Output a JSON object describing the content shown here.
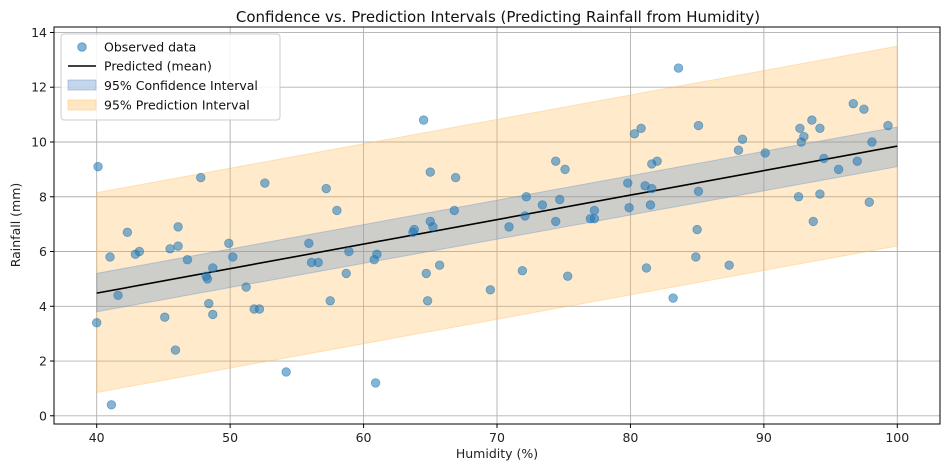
{
  "chart_data": {
    "type": "scatter",
    "title": "Confidence vs. Prediction Intervals (Predicting Rainfall from Humidity)",
    "xlabel": "Humidity (%)",
    "ylabel": "Rainfall (mm)",
    "xlim": [
      36.8,
      103.2
    ],
    "ylim": [
      -0.3,
      14.2
    ],
    "x_ticks": [
      40,
      50,
      60,
      70,
      80,
      90,
      100
    ],
    "y_ticks": [
      0,
      2,
      4,
      6,
      8,
      10,
      12,
      14
    ],
    "grid": true,
    "legend_position": "top-left",
    "colors": {
      "scatter": "#1f77b4",
      "line": "#000000",
      "confidence": "#5b8cc7",
      "prediction": "#ffbb55"
    },
    "legend": [
      {
        "label": "Observed data",
        "kind": "marker"
      },
      {
        "label": "Predicted (mean)",
        "kind": "line"
      },
      {
        "label": "95% Confidence Interval",
        "kind": "confidence"
      },
      {
        "label": "95% Prediction Interval",
        "kind": "prediction"
      }
    ],
    "mean_line": {
      "x": [
        40,
        100
      ],
      "y": [
        4.48,
        9.85
      ]
    },
    "confidence_interval": {
      "x": [
        40,
        100
      ],
      "lower": [
        3.8,
        9.1
      ],
      "upper": [
        5.2,
        10.55
      ]
    },
    "prediction_interval": {
      "x": [
        40,
        100
      ],
      "lower": [
        0.85,
        6.2
      ],
      "upper": [
        8.15,
        13.5
      ]
    },
    "series": [
      {
        "name": "Observed data",
        "points": [
          [
            40.0,
            3.4
          ],
          [
            40.1,
            9.1
          ],
          [
            41.0,
            5.8
          ],
          [
            41.1,
            0.4
          ],
          [
            41.6,
            4.4
          ],
          [
            42.3,
            6.7
          ],
          [
            42.9,
            5.9
          ],
          [
            43.2,
            6.0
          ],
          [
            45.1,
            3.6
          ],
          [
            45.5,
            6.1
          ],
          [
            45.9,
            2.4
          ],
          [
            46.1,
            6.2
          ],
          [
            46.1,
            6.9
          ],
          [
            46.8,
            5.7
          ],
          [
            47.8,
            8.7
          ],
          [
            48.2,
            5.1
          ],
          [
            48.3,
            5.0
          ],
          [
            48.4,
            4.1
          ],
          [
            48.7,
            3.7
          ],
          [
            48.7,
            5.4
          ],
          [
            49.9,
            6.3
          ],
          [
            50.2,
            5.8
          ],
          [
            51.2,
            4.7
          ],
          [
            51.8,
            3.9
          ],
          [
            52.2,
            3.9
          ],
          [
            52.6,
            8.5
          ],
          [
            54.2,
            1.6
          ],
          [
            55.9,
            6.3
          ],
          [
            56.1,
            5.6
          ],
          [
            56.6,
            5.6
          ],
          [
            57.2,
            8.3
          ],
          [
            57.5,
            4.2
          ],
          [
            58.0,
            7.5
          ],
          [
            58.7,
            5.2
          ],
          [
            58.9,
            6.0
          ],
          [
            60.8,
            5.7
          ],
          [
            60.9,
            1.2
          ],
          [
            61.0,
            5.9
          ],
          [
            63.7,
            6.7
          ],
          [
            63.8,
            6.8
          ],
          [
            64.5,
            10.8
          ],
          [
            64.7,
            5.2
          ],
          [
            64.8,
            4.2
          ],
          [
            65.0,
            8.9
          ],
          [
            65.0,
            7.1
          ],
          [
            65.2,
            6.9
          ],
          [
            65.7,
            5.5
          ],
          [
            66.8,
            7.5
          ],
          [
            66.9,
            8.7
          ],
          [
            69.5,
            4.6
          ],
          [
            70.9,
            6.9
          ],
          [
            71.9,
            5.3
          ],
          [
            72.1,
            7.3
          ],
          [
            72.2,
            8.0
          ],
          [
            73.4,
            7.7
          ],
          [
            74.4,
            9.3
          ],
          [
            74.4,
            7.1
          ],
          [
            74.7,
            7.9
          ],
          [
            75.1,
            9.0
          ],
          [
            75.3,
            5.1
          ],
          [
            77.0,
            7.2
          ],
          [
            77.3,
            7.2
          ],
          [
            77.3,
            7.5
          ],
          [
            79.8,
            8.5
          ],
          [
            79.9,
            7.6
          ],
          [
            80.3,
            10.3
          ],
          [
            80.8,
            10.5
          ],
          [
            81.1,
            8.4
          ],
          [
            81.2,
            5.4
          ],
          [
            81.5,
            7.7
          ],
          [
            81.6,
            8.3
          ],
          [
            81.6,
            9.2
          ],
          [
            82.0,
            9.3
          ],
          [
            83.2,
            4.3
          ],
          [
            83.6,
            12.7
          ],
          [
            84.9,
            5.8
          ],
          [
            85.0,
            6.8
          ],
          [
            85.1,
            8.2
          ],
          [
            85.1,
            10.6
          ],
          [
            87.4,
            5.5
          ],
          [
            88.1,
            9.7
          ],
          [
            88.4,
            10.1
          ],
          [
            90.1,
            9.6
          ],
          [
            92.6,
            8.0
          ],
          [
            92.7,
            10.5
          ],
          [
            92.8,
            10.0
          ],
          [
            93.0,
            10.2
          ],
          [
            93.6,
            10.8
          ],
          [
            93.7,
            7.1
          ],
          [
            94.2,
            10.5
          ],
          [
            94.2,
            8.1
          ],
          [
            94.5,
            9.4
          ],
          [
            95.6,
            9.0
          ],
          [
            96.7,
            11.4
          ],
          [
            97.0,
            9.3
          ],
          [
            97.5,
            11.2
          ],
          [
            97.9,
            7.8
          ],
          [
            98.1,
            10.0
          ],
          [
            99.3,
            10.6
          ]
        ]
      }
    ]
  }
}
